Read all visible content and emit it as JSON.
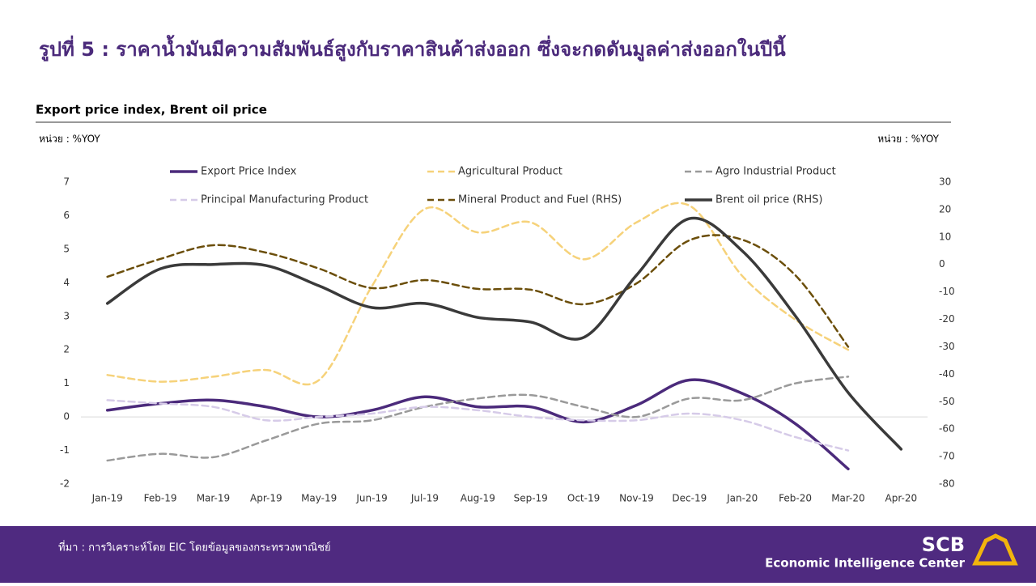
{
  "title": "รูปที่ 5 : ราคาน้ำมันมีความสัมพันธ์สูงกับราคาสินค้าส่งออก  ซึ่งจะกดดันมูลค่าส่งออกในปีนี้",
  "chart_data": {
    "type": "line",
    "title": "Export price index, Brent oil price",
    "y_unit": "หน่วย : %YOY",
    "y2_unit": "หน่วย : %YOY",
    "categories": [
      "Jan-19",
      "Feb-19",
      "Mar-19",
      "Apr-19",
      "May-19",
      "Jun-19",
      "Jul-19",
      "Aug-19",
      "Sep-19",
      "Oct-19",
      "Nov-19",
      "Dec-19",
      "Jan-20",
      "Feb-20",
      "Mar-20",
      "Apr-20"
    ],
    "ylim": [
      -2,
      7
    ],
    "yticks": [
      -2,
      -1,
      0,
      1,
      2,
      3,
      4,
      5,
      6,
      7
    ],
    "y2lim": [
      -80,
      30
    ],
    "y2ticks": [
      -80,
      -70,
      -60,
      -50,
      -40,
      -30,
      -20,
      -10,
      0,
      10,
      20,
      30
    ],
    "grid": false,
    "series": [
      {
        "name": "Export Price Index",
        "color": "#4b2a7b",
        "dashed": false,
        "values": [
          0.2,
          0.4,
          0.5,
          0.3,
          0.0,
          0.2,
          0.6,
          0.3,
          0.3,
          -0.15,
          0.35,
          1.1,
          0.7,
          -0.2,
          -1.55,
          null
        ]
      },
      {
        "name": "Agricultural Product",
        "color": "#f6d27a",
        "dashed": true,
        "values": [
          1.25,
          1.05,
          1.2,
          1.4,
          1.1,
          3.9,
          6.2,
          5.5,
          5.8,
          4.7,
          5.8,
          6.3,
          4.2,
          2.9,
          2.0,
          null
        ]
      },
      {
        "name": "Agro Industrial Product",
        "color": "#9a9a9a",
        "dashed": true,
        "values": [
          -1.3,
          -1.1,
          -1.2,
          -0.7,
          -0.2,
          -0.1,
          0.3,
          0.55,
          0.65,
          0.3,
          0.0,
          0.55,
          0.5,
          1.0,
          1.2,
          null
        ]
      },
      {
        "name": "Principal Manufacturing Product",
        "color": "#d6cbe8",
        "dashed": true,
        "values": [
          0.5,
          0.4,
          0.3,
          -0.1,
          0.0,
          0.1,
          0.3,
          0.2,
          0.0,
          -0.1,
          -0.1,
          0.1,
          -0.1,
          -0.6,
          -1.0,
          null
        ]
      },
      {
        "name": "Mineral Product and Fuel (RHS)",
        "color": "#6b4e0a",
        "dashed": true,
        "axis": "y2",
        "values": [
          -4.5,
          2,
          7,
          4.3,
          -1.5,
          -8.6,
          -5.7,
          -8.9,
          -9.2,
          -14.5,
          -6.9,
          8.8,
          9,
          -3.9,
          -30,
          null
        ]
      },
      {
        "name": "Brent oil price (RHS)",
        "color": "#3a3a3a",
        "dashed": false,
        "axis": "y2",
        "values": [
          -14.2,
          -1.6,
          0,
          -0.4,
          -7.8,
          -15.7,
          -14.2,
          -19.3,
          -21,
          -26.6,
          -3.9,
          16.7,
          4.9,
          -18.7,
          -46.7,
          -67.3
        ]
      }
    ]
  },
  "footer": {
    "source": "ที่มา : การวิเคราะห์โดย EIC โดยข้อมูลของกระทรวงพาณิชย์",
    "brand": "SCB",
    "center": "Economic Intelligence Center"
  }
}
